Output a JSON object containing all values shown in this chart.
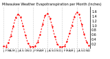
{
  "title": "Milwaukee Weather Evapotranspiration per Month (Inches)",
  "x_labels": [
    "J",
    "F",
    "M",
    "A",
    "M",
    "J",
    "J",
    "A",
    "S",
    "O",
    "N",
    "D",
    "J",
    "F",
    "M",
    "A",
    "M",
    "J",
    "J",
    "A",
    "S",
    "O",
    "N",
    "D",
    "J",
    "F",
    "M",
    "A",
    "M",
    "J",
    "J",
    "A",
    "S",
    "O",
    "N",
    "D"
  ],
  "values": [
    0.1,
    0.08,
    0.25,
    0.55,
    0.95,
    1.35,
    1.5,
    1.38,
    1.0,
    0.58,
    0.22,
    0.08,
    0.08,
    0.1,
    0.28,
    0.6,
    1.05,
    1.42,
    1.52,
    1.32,
    0.95,
    0.52,
    0.2,
    0.07,
    0.06,
    0.1,
    0.3,
    0.65,
    1.0,
    1.38,
    1.58,
    1.48,
    1.05,
    0.62,
    0.28,
    0.12
  ],
  "line_color": "#ff0000",
  "background_color": "#ffffff",
  "grid_color": "#999999",
  "ylim": [
    0.0,
    1.8
  ],
  "yticks": [
    0.2,
    0.4,
    0.6,
    0.8,
    1.0,
    1.2,
    1.4,
    1.6
  ],
  "grid_positions": [
    0,
    6,
    12,
    18,
    24,
    30
  ],
  "ylabel_fontsize": 3.5,
  "xlabel_fontsize": 3.0,
  "title_fontsize": 3.5
}
